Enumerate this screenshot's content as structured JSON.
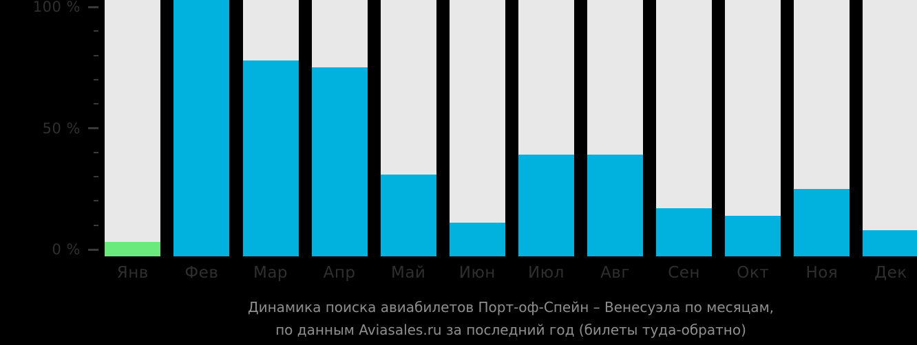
{
  "chart_data": {
    "type": "bar",
    "title": "Динамика поиска авиабилетов Порт-оф-Спейн – Венесуэла по месяцам",
    "subtitle": "по данным Aviasales.ru за последний год (билеты туда-обратно)",
    "categories": [
      "Янв",
      "Фев",
      "Мар",
      "Апр",
      "Май",
      "Июн",
      "Июл",
      "Авг",
      "Сен",
      "Окт",
      "Ноя",
      "Дек"
    ],
    "values": [
      3,
      103,
      78,
      75,
      31,
      11,
      39,
      39,
      17,
      14,
      25,
      8
    ],
    "unit": "%",
    "highlight_index": 0,
    "xlabel": "",
    "ylabel": "",
    "ylim": [
      0,
      100
    ],
    "y_tick_labels": [
      "100 %",
      "50 %",
      "0 %"
    ],
    "y_minor_tick_step_percent": 10,
    "grid": false,
    "legend_position": "none",
    "colors": {
      "background": "#000000",
      "track": "#e8e8e8",
      "bar": "#00b2dd",
      "highlight": "#6ae97d",
      "axis_text": "#2f2f2f",
      "tick": "#3a3a3a",
      "caption_text": "#8f8f8f"
    }
  },
  "caption": {
    "line1": "Динамика поиска авиабилетов Порт-оф-Спейн – Венесуэла по месяцам,",
    "line2": "по данным Aviasales.ru за последний год (билеты туда-обратно)"
  }
}
